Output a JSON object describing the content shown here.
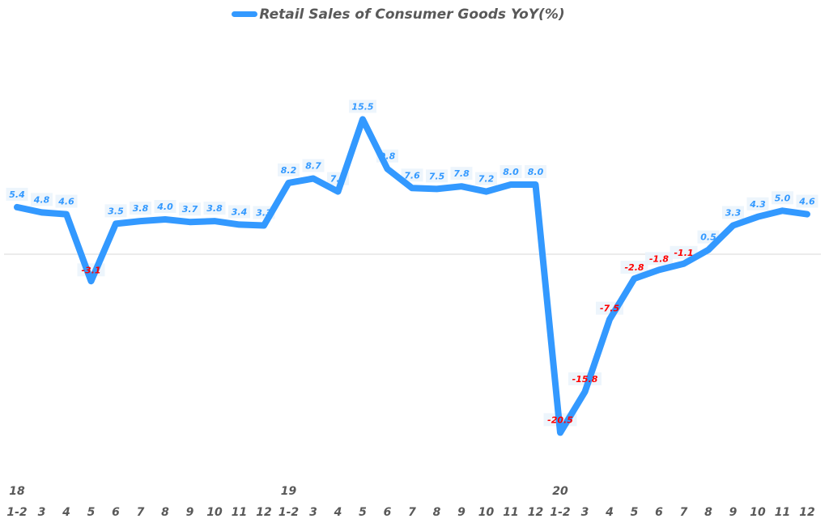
{
  "chart_data": {
    "type": "line",
    "title": "",
    "legend": [
      "Retail Sales of Consumer Goods YoY(%)"
    ],
    "legend_position": "top",
    "xlabel": "",
    "ylabel": "",
    "grid": false,
    "zero_line": true,
    "line_color": "#3399ff",
    "positive_label_color": "#3399ff",
    "negative_label_color": "#ff0000",
    "year_labels": [
      {
        "index": 0,
        "label": "18"
      },
      {
        "index": 11,
        "label": "19"
      },
      {
        "index": 22,
        "label": "20"
      }
    ],
    "categories": [
      "1-2",
      "3",
      "4",
      "5",
      "6",
      "7",
      "8",
      "9",
      "10",
      "11",
      "12",
      "1-2",
      "3",
      "4",
      "5",
      "6",
      "7",
      "8",
      "9",
      "10",
      "11",
      "12",
      "1-2",
      "3",
      "4",
      "5",
      "6",
      "7",
      "8",
      "9",
      "10",
      "11",
      "12"
    ],
    "series": [
      {
        "name": "Retail Sales of Consumer Goods YoY(%)",
        "values": [
          5.4,
          4.8,
          4.6,
          -3.1,
          3.5,
          3.8,
          4.0,
          3.7,
          3.8,
          3.4,
          3.3,
          8.2,
          8.7,
          7.2,
          15.5,
          9.8,
          7.6,
          7.5,
          7.8,
          7.2,
          8.0,
          8.0,
          -20.5,
          -15.8,
          -7.5,
          -2.8,
          -1.8,
          -1.1,
          0.5,
          3.3,
          4.3,
          5.0,
          4.6
        ]
      }
    ]
  }
}
